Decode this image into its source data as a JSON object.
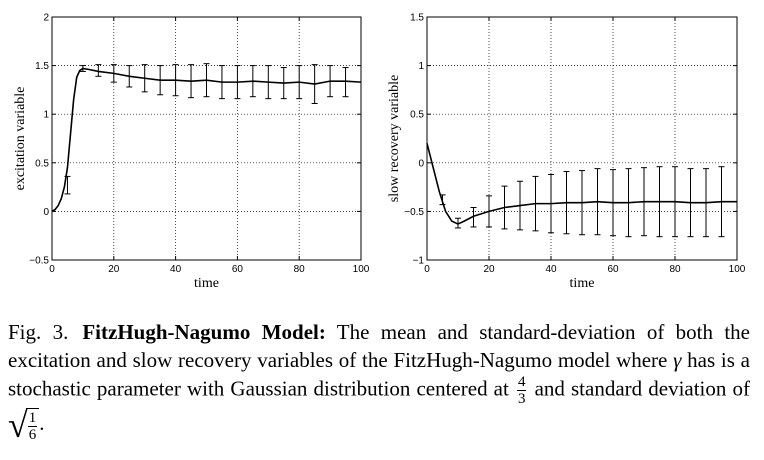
{
  "chart_data": [
    {
      "type": "line",
      "title": "",
      "xlabel": "time",
      "ylabel": "excitation variable",
      "xlim": [
        0,
        100
      ],
      "ylim": [
        -0.5,
        2
      ],
      "xticks": [
        0,
        20,
        40,
        60,
        80,
        100
      ],
      "yticks": [
        -0.5,
        0,
        0.5,
        1,
        1.5,
        2
      ],
      "xtick_labels": [
        "0",
        "20",
        "40",
        "60",
        "80",
        "100"
      ],
      "ytick_labels": [
        "−0.5",
        "0",
        "0.5",
        "1",
        "1.5",
        "2"
      ],
      "grid": true,
      "series": [
        {
          "x": [
            0,
            1,
            2,
            3,
            4,
            5,
            6,
            7,
            8,
            9,
            10,
            12,
            15,
            20,
            25,
            30,
            35,
            40,
            45,
            50,
            55,
            60,
            65,
            70,
            75,
            80,
            85,
            90,
            95,
            100
          ],
          "y": [
            0,
            0.02,
            0.06,
            0.13,
            0.25,
            0.45,
            0.8,
            1.15,
            1.38,
            1.45,
            1.47,
            1.46,
            1.44,
            1.42,
            1.39,
            1.37,
            1.35,
            1.35,
            1.34,
            1.35,
            1.33,
            1.33,
            1.34,
            1.33,
            1.32,
            1.33,
            1.31,
            1.34,
            1.34,
            1.33
          ]
        }
      ],
      "error_bars": {
        "x": [
          5,
          10,
          15,
          20,
          25,
          30,
          35,
          40,
          45,
          50,
          55,
          60,
          65,
          70,
          75,
          80,
          85,
          90,
          95
        ],
        "y": [
          0.27,
          1.47,
          1.45,
          1.42,
          1.39,
          1.37,
          1.35,
          1.35,
          1.34,
          1.35,
          1.33,
          1.33,
          1.34,
          1.33,
          1.32,
          1.33,
          1.31,
          1.34,
          1.33
        ],
        "err": [
          0.09,
          0.03,
          0.06,
          0.09,
          0.11,
          0.14,
          0.15,
          0.16,
          0.17,
          0.17,
          0.17,
          0.17,
          0.16,
          0.17,
          0.16,
          0.17,
          0.2,
          0.16,
          0.15
        ]
      }
    },
    {
      "type": "line",
      "title": "",
      "xlabel": "time",
      "ylabel": "slow recovery variable",
      "xlim": [
        0,
        100
      ],
      "ylim": [
        -1,
        1.5
      ],
      "xticks": [
        0,
        20,
        40,
        60,
        80,
        100
      ],
      "yticks": [
        -1,
        -0.5,
        0,
        0.5,
        1,
        1.5
      ],
      "xtick_labels": [
        "0",
        "20",
        "40",
        "60",
        "80",
        "100"
      ],
      "ytick_labels": [
        "−1",
        "−0.5",
        "0",
        "0.5",
        "1",
        "1.5"
      ],
      "grid": true,
      "series": [
        {
          "x": [
            0,
            2,
            4,
            6,
            8,
            10,
            12,
            15,
            20,
            25,
            30,
            35,
            40,
            45,
            50,
            55,
            60,
            65,
            70,
            75,
            80,
            85,
            90,
            95,
            100
          ],
          "y": [
            0.2,
            -0.05,
            -0.3,
            -0.5,
            -0.6,
            -0.63,
            -0.6,
            -0.55,
            -0.5,
            -0.46,
            -0.44,
            -0.42,
            -0.42,
            -0.41,
            -0.41,
            -0.4,
            -0.41,
            -0.41,
            -0.4,
            -0.4,
            -0.4,
            -0.41,
            -0.41,
            -0.4,
            -0.4
          ]
        }
      ],
      "error_bars": {
        "x": [
          5,
          10,
          15,
          20,
          25,
          30,
          35,
          40,
          45,
          50,
          55,
          60,
          65,
          70,
          75,
          80,
          85,
          90,
          95
        ],
        "y": [
          -0.38,
          -0.62,
          -0.56,
          -0.5,
          -0.46,
          -0.44,
          -0.42,
          -0.42,
          -0.41,
          -0.41,
          -0.4,
          -0.41,
          -0.41,
          -0.4,
          -0.4,
          -0.4,
          -0.41,
          -0.41,
          -0.4
        ],
        "err": [
          0.05,
          0.05,
          0.1,
          0.16,
          0.22,
          0.25,
          0.28,
          0.3,
          0.32,
          0.33,
          0.34,
          0.34,
          0.35,
          0.35,
          0.36,
          0.36,
          0.35,
          0.35,
          0.36
        ]
      }
    }
  ],
  "caption": {
    "label": "Fig. 3.",
    "bold": "FitzHugh-Nagumo Model:",
    "text1": " The mean and standard-deviation of both the excitation and slow recovery variables of the FitzHugh-Nagumo model where ",
    "gamma": "γ",
    "text2": " has is a stochastic parameter with Gaussian distribution centered at ",
    "frac1_num": "4",
    "frac1_den": "3",
    "text3": " and standard deviation of ",
    "frac2_num": "1",
    "frac2_den": "6",
    "end": "."
  }
}
